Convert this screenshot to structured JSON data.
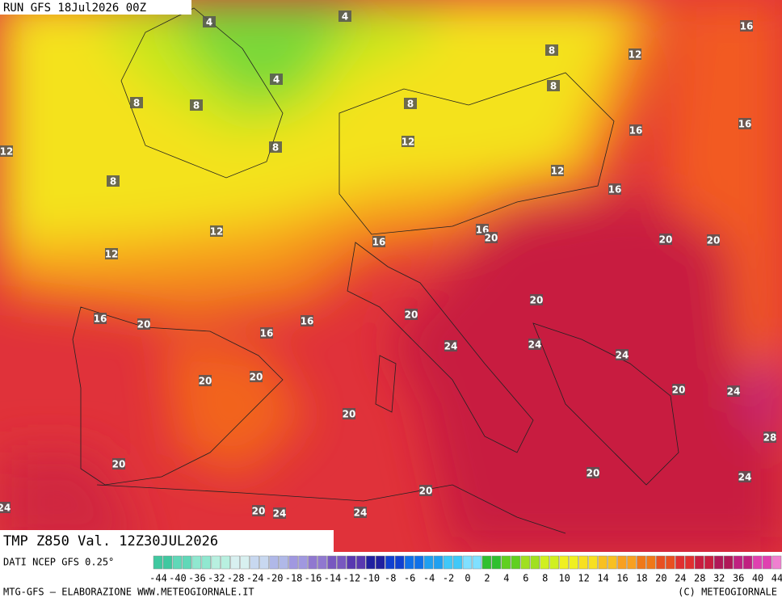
{
  "header": {
    "run": "RUN GFS 18Jul2026 00Z"
  },
  "map": {
    "field_label": "TMP Z850 Val. 12Z30JUL2026",
    "contour_labels": [
      4,
      4,
      4,
      8,
      8,
      8,
      8,
      8,
      8,
      8,
      12,
      16,
      16,
      16,
      12,
      12,
      12,
      16,
      12,
      12,
      16,
      20,
      16,
      20,
      20,
      20,
      16,
      20,
      16,
      16,
      20,
      24,
      24,
      24,
      20,
      20,
      20,
      20,
      24,
      28,
      20,
      20,
      24,
      20,
      24,
      20,
      24,
      24
    ]
  },
  "legend": {
    "source": "DATI NCEP GFS 0.25°",
    "labels": [
      -44,
      -40,
      -36,
      -32,
      -28,
      -24,
      -20,
      -18,
      -16,
      -14,
      -12,
      -10,
      -8,
      -6,
      -4,
      -2,
      0,
      2,
      4,
      6,
      8,
      10,
      12,
      14,
      16,
      18,
      20,
      24,
      28,
      32,
      36,
      40,
      44
    ]
  },
  "footer": {
    "credit": "MTG-GFS — ELABORAZIONE WWW.METEOGIORNALE.IT",
    "copyright": "(C) METEOGIORNALE"
  }
}
